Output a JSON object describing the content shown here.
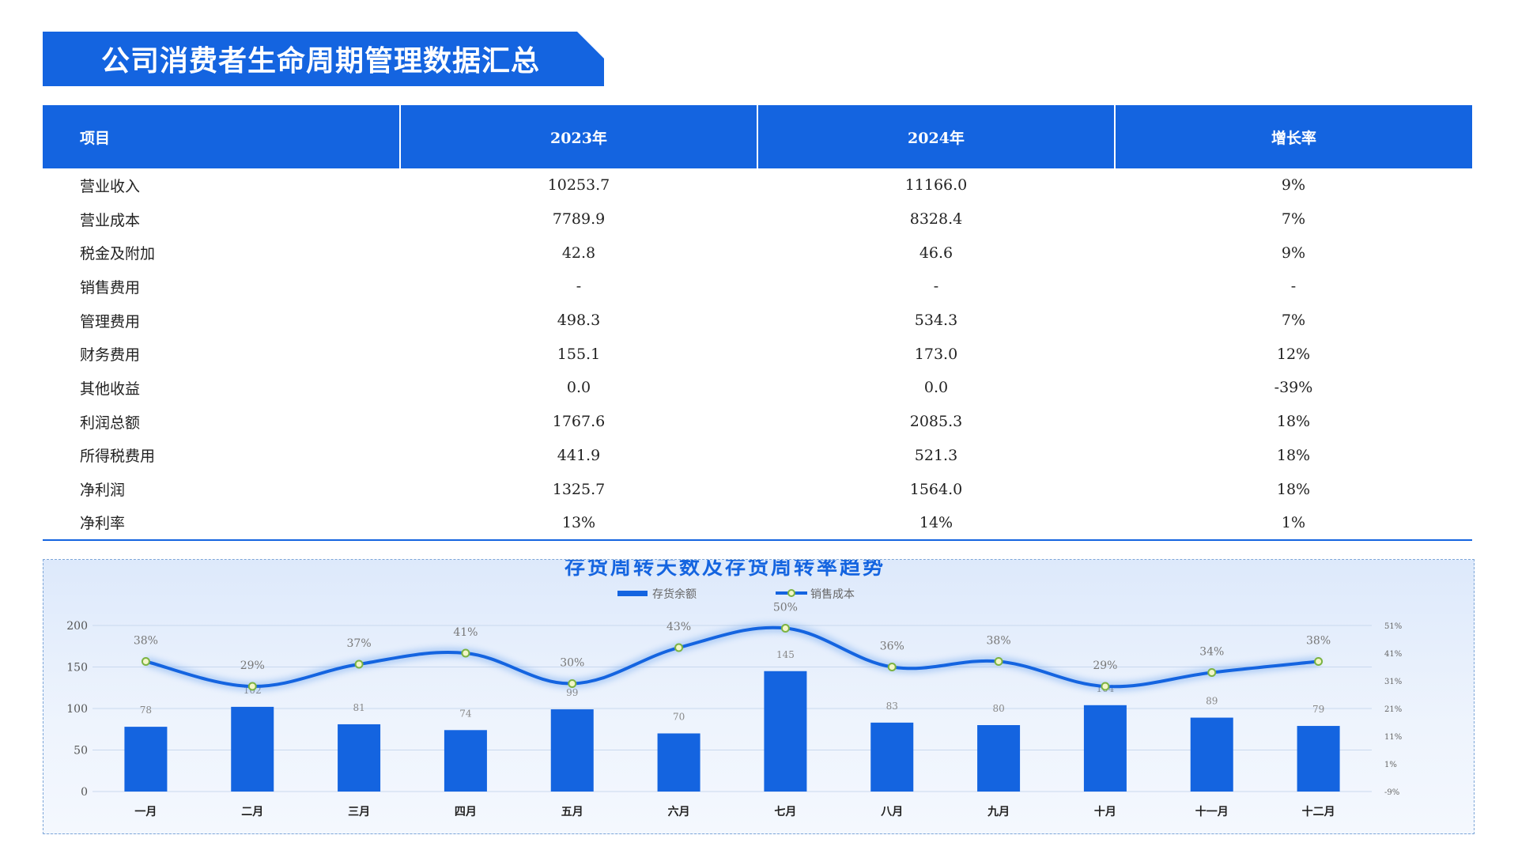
{
  "title": "公司消费者生命周期管理数据汇总",
  "table": {
    "headers": [
      "项目",
      "2023年",
      "2024年",
      "增长率"
    ],
    "rows": [
      [
        "营业收入",
        "10253.7",
        "11166.0",
        "9%"
      ],
      [
        "营业成本",
        "7789.9",
        "8328.4",
        "7%"
      ],
      [
        "税金及附加",
        "42.8",
        "46.6",
        "9%"
      ],
      [
        "销售费用",
        "-",
        "-",
        "-"
      ],
      [
        "管理费用",
        "498.3",
        "534.3",
        "7%"
      ],
      [
        "财务费用",
        "155.1",
        "173.0",
        "12%"
      ],
      [
        "其他收益",
        "0.0",
        "0.0",
        "-39%"
      ],
      [
        "利润总额",
        "1767.6",
        "2085.3",
        "18%"
      ],
      [
        "所得税费用",
        "441.9",
        "521.3",
        "18%"
      ],
      [
        "净利润",
        "1325.7",
        "1564.0",
        "18%"
      ],
      [
        "净利率",
        "13%",
        "14%",
        "1%"
      ]
    ]
  },
  "chart_data": {
    "type": "bar",
    "title": "存货周转天数及存货周转率趋势",
    "categories": [
      "一月",
      "二月",
      "三月",
      "四月",
      "五月",
      "六月",
      "七月",
      "八月",
      "九月",
      "十月",
      "十一月",
      "十二月"
    ],
    "series": [
      {
        "name": "存货余额",
        "type": "bar",
        "axis": "left",
        "values": [
          78,
          102,
          81,
          74,
          99,
          70,
          145,
          83,
          80,
          104,
          89,
          79
        ]
      },
      {
        "name": "销售成本",
        "type": "line",
        "axis": "right",
        "smooth": true,
        "values": [
          38,
          29,
          37,
          41,
          30,
          43,
          50,
          36,
          38,
          29,
          34,
          38
        ],
        "labels": [
          "38%",
          "29%",
          "37%",
          "41%",
          "30%",
          "43%",
          "50%",
          "36%",
          "38%",
          "29%",
          "34%",
          "38%"
        ]
      }
    ],
    "left_axis": {
      "ylim": [
        0,
        200
      ],
      "ticks": [
        "0",
        "50",
        "100",
        "150",
        "200"
      ]
    },
    "right_axis": {
      "ylim": [
        -9,
        51
      ],
      "ticks": [
        "-9%",
        "1%",
        "11%",
        "21%",
        "31%",
        "41%",
        "51%"
      ]
    },
    "legend_position": "top-center",
    "grid": true,
    "colors": {
      "bar": "#1464e0",
      "line": "#1464e0",
      "marker_fill": "#f3f6c8",
      "marker_stroke": "#7cb342",
      "grid": "#c9d8ee"
    }
  }
}
